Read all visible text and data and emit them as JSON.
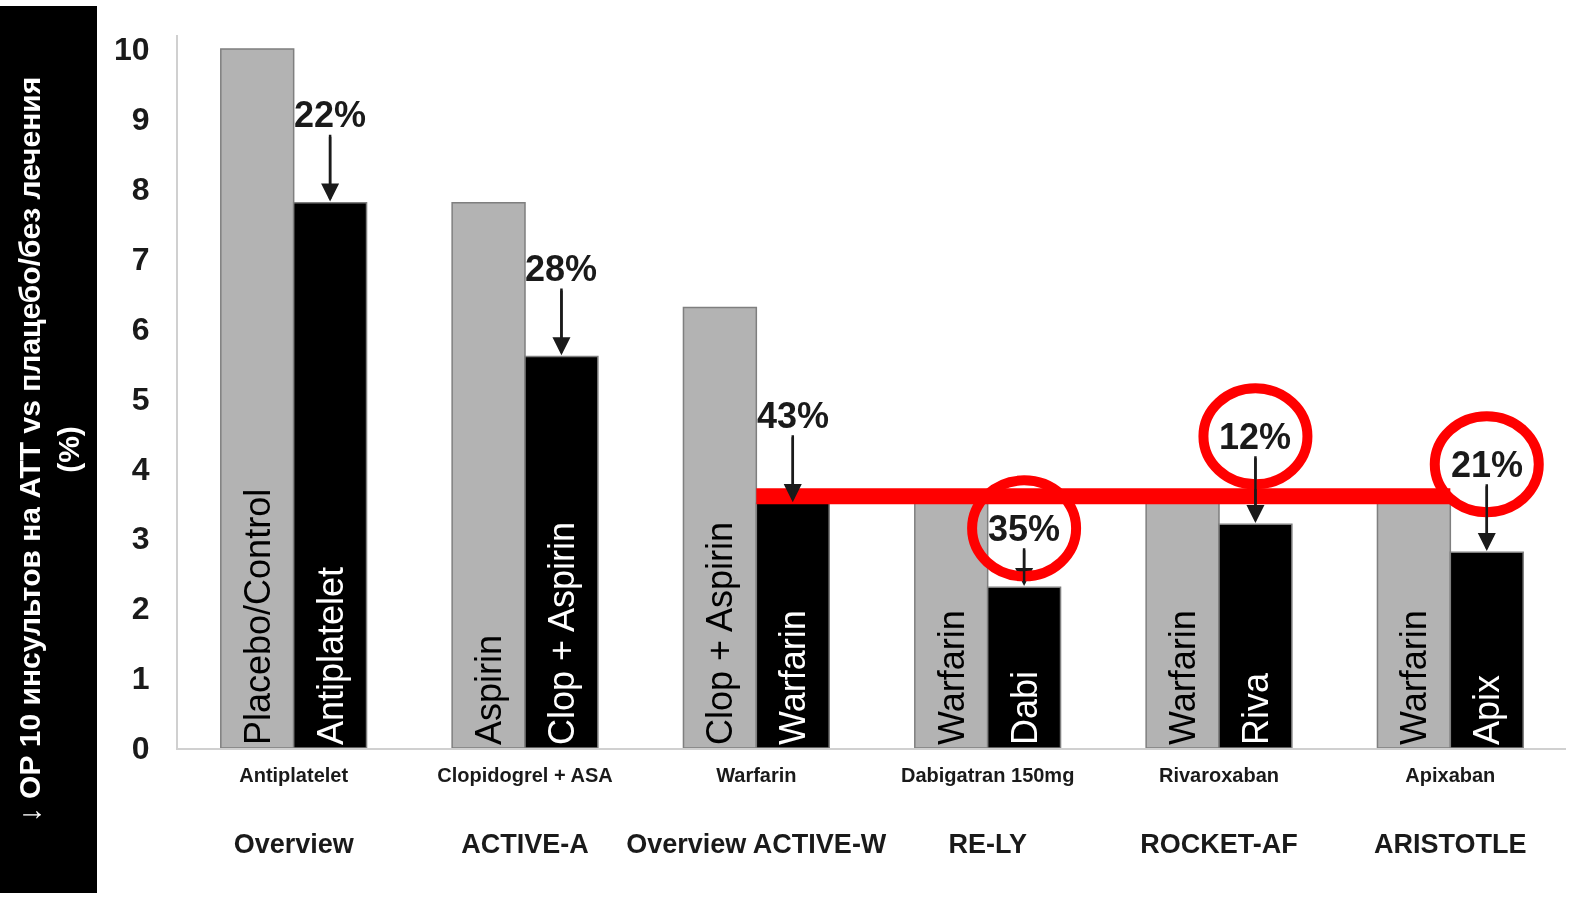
{
  "chart_data": {
    "type": "bar",
    "ylabel": "↓ ОР 10 инсультов на АТТ vs плацебо/без лечения (%)",
    "categories": [
      "Antiplatelet\nOverview",
      "Clopidogrel + ASA\nACTIVE-A",
      "Warfarin\nOverview ACTIVE-W",
      "Dabigatran 150mg\nRE-LY",
      "Rivaroxaban\nROCKET-AF",
      "Apixaban\nARISTOTLE"
    ],
    "series": [
      {
        "color": "#b3b3b3",
        "values": [
          10,
          7.8,
          6.3,
          3.5,
          3.5,
          3.5
        ],
        "value_labels": [
          "Placebo/Control",
          "Aspirin",
          "Clop + Aspirin",
          "Warfarin",
          "Warfarin",
          "Warfarin"
        ]
      },
      {
        "color": "#000000",
        "values": [
          7.8,
          5.6,
          3.5,
          2.3,
          3.2,
          2.8
        ],
        "value_labels": [
          "Antiplatelet",
          "Clop + Aspirin",
          "Warfarin",
          "Dabi",
          "Riva",
          "Apix"
        ]
      }
    ],
    "ylim": [
      0,
      10.2
    ],
    "yticks": [
      0,
      1,
      2,
      3,
      4,
      5,
      6,
      7,
      8,
      9,
      10
    ],
    "ref_lines": [
      {
        "axis": "y",
        "value": 3.6,
        "color": "#ff0000"
      }
    ],
    "annotations": [
      {
        "text": "22%",
        "x": "Antiplatelet\nOverview",
        "y": 7.8
      },
      {
        "text": "28%",
        "x": "Clopidogrel + ASA\nACTIVE-A",
        "y": 5.6
      },
      {
        "text": "43%",
        "x": "Warfarin\nOverview ACTIVE-W",
        "y": 3.5
      },
      {
        "text": "35%",
        "x": "Dabigatran 150mg\nRE-LY",
        "y": 2.3
      },
      {
        "text": "12%",
        "x": "Rivaroxaban\nROCKET-AF",
        "y": 3.2
      },
      {
        "text": "21%",
        "x": "Apixaban\nARISTOTLE",
        "y": 2.8
      }
    ]
  }
}
